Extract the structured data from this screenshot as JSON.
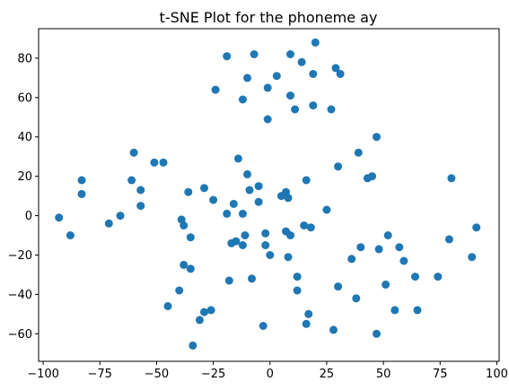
{
  "chart_data": {
    "type": "scatter",
    "title": "t-SNE Plot for the phoneme ay",
    "xlabel": "",
    "ylabel": "",
    "xlim": [
      -102,
      101
    ],
    "ylim": [
      -74,
      95
    ],
    "xticks": [
      -100,
      -75,
      -50,
      -25,
      0,
      25,
      50,
      75,
      100
    ],
    "yticks": [
      -60,
      -40,
      -20,
      0,
      20,
      40,
      60,
      80
    ],
    "grid": false,
    "point_color": "#1f77b4",
    "points": [
      [
        -93,
        -1
      ],
      [
        -88,
        -10
      ],
      [
        -83,
        18
      ],
      [
        -83,
        11
      ],
      [
        -71,
        -4
      ],
      [
        -66,
        0
      ],
      [
        -61,
        18
      ],
      [
        -60,
        32
      ],
      [
        -57,
        5
      ],
      [
        -57,
        13
      ],
      [
        -51,
        27
      ],
      [
        -47,
        27
      ],
      [
        -45,
        -46
      ],
      [
        -40,
        -38
      ],
      [
        -39,
        -2
      ],
      [
        -38,
        -25
      ],
      [
        -38,
        -5
      ],
      [
        -36,
        12
      ],
      [
        -35,
        -11
      ],
      [
        -35,
        -27
      ],
      [
        -34,
        -66
      ],
      [
        -31,
        -53
      ],
      [
        -29,
        -49
      ],
      [
        -29,
        14
      ],
      [
        -26,
        -48
      ],
      [
        -25,
        8
      ],
      [
        -24,
        64
      ],
      [
        -19,
        81
      ],
      [
        -19,
        1
      ],
      [
        -18,
        -33
      ],
      [
        -17,
        -14
      ],
      [
        -16,
        6
      ],
      [
        -15,
        -13
      ],
      [
        -14,
        29
      ],
      [
        -12,
        59
      ],
      [
        -12,
        -15
      ],
      [
        -12,
        1
      ],
      [
        -11,
        -10
      ],
      [
        -10,
        70
      ],
      [
        -10,
        21
      ],
      [
        -9,
        13
      ],
      [
        -8,
        -32
      ],
      [
        -7,
        82
      ],
      [
        -5,
        15
      ],
      [
        -5,
        7
      ],
      [
        -3,
        -56
      ],
      [
        -2,
        -15
      ],
      [
        -2,
        -9
      ],
      [
        -1,
        49
      ],
      [
        -1,
        65
      ],
      [
        0,
        -20
      ],
      [
        3,
        71
      ],
      [
        5,
        10
      ],
      [
        7,
        -8
      ],
      [
        7,
        12
      ],
      [
        8,
        9
      ],
      [
        8,
        -21
      ],
      [
        9,
        82
      ],
      [
        9,
        61
      ],
      [
        9,
        -10
      ],
      [
        11,
        54
      ],
      [
        12,
        -31
      ],
      [
        12,
        -38
      ],
      [
        14,
        78
      ],
      [
        15,
        -5
      ],
      [
        16,
        -55
      ],
      [
        16,
        18
      ],
      [
        17,
        -50
      ],
      [
        18,
        -6
      ],
      [
        19,
        72
      ],
      [
        19,
        56
      ],
      [
        20,
        88
      ],
      [
        25,
        3
      ],
      [
        27,
        54
      ],
      [
        28,
        -58
      ],
      [
        29,
        75
      ],
      [
        30,
        25
      ],
      [
        30,
        -36
      ],
      [
        31,
        72
      ],
      [
        36,
        -22
      ],
      [
        38,
        -42
      ],
      [
        39,
        32
      ],
      [
        40,
        -16
      ],
      [
        43,
        19
      ],
      [
        45,
        20
      ],
      [
        47,
        40
      ],
      [
        47,
        -60
      ],
      [
        48,
        -17
      ],
      [
        51,
        -35
      ],
      [
        52,
        -10
      ],
      [
        55,
        -48
      ],
      [
        57,
        -16
      ],
      [
        59,
        -23
      ],
      [
        64,
        -31
      ],
      [
        65,
        -48
      ],
      [
        74,
        -31
      ],
      [
        79,
        -12
      ],
      [
        80,
        19
      ],
      [
        89,
        -21
      ],
      [
        91,
        -6
      ]
    ]
  }
}
